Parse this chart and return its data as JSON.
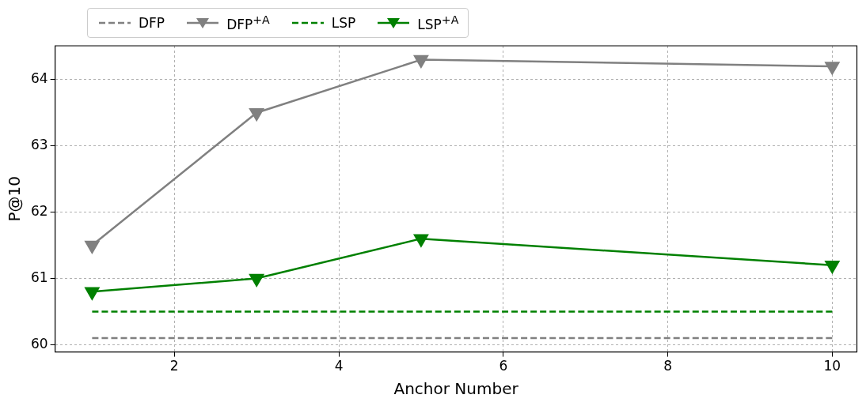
{
  "chart_data": {
    "type": "line",
    "xlabel": "Anchor Number",
    "ylabel": "P@10",
    "x": [
      1,
      3,
      5,
      10
    ],
    "xlim": [
      0.55,
      10.3
    ],
    "xticks": [
      2,
      4,
      6,
      8,
      10
    ],
    "ylim": [
      59.89,
      64.51
    ],
    "yticks": [
      60,
      61,
      62,
      63,
      64
    ],
    "grid": true,
    "legend": "top",
    "series": [
      {
        "name": "DFP",
        "color": "#808080",
        "values": [
          60.1,
          60.1,
          60.1,
          60.1
        ],
        "line_style": "dashed",
        "marker": "none"
      },
      {
        "name": "DFP$^{+A}$",
        "color": "#808080",
        "values": [
          61.5,
          63.5,
          64.3,
          64.2
        ],
        "line_style": "solid",
        "marker": "triangle"
      },
      {
        "name": "LSP",
        "color": "#008000",
        "values": [
          60.5,
          60.5,
          60.5,
          60.5
        ],
        "line_style": "dashed",
        "marker": "none"
      },
      {
        "name": "LSP$^{+A}$",
        "color": "#008000",
        "values": [
          60.8,
          61.0,
          61.6,
          61.2
        ],
        "line_style": "solid",
        "marker": "triangle"
      }
    ]
  }
}
